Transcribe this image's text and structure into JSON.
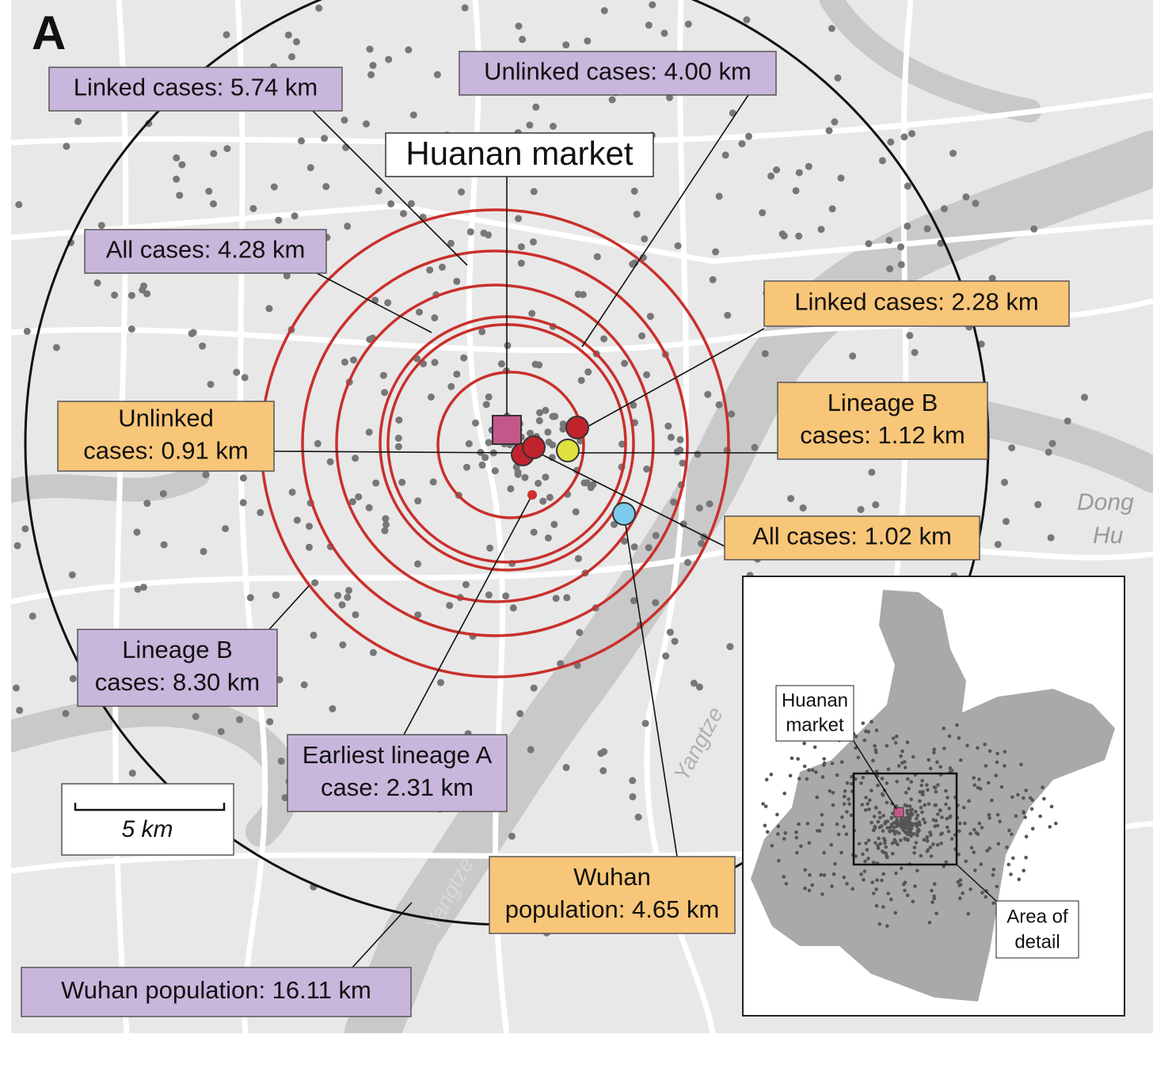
{
  "panel": "A",
  "market_label": "Huanan market",
  "labels": [
    {
      "lines": [
        "Linked cases: 5.74 km"
      ]
    },
    {
      "lines": [
        "Unlinked cases: 4.00 km"
      ]
    },
    {
      "lines": [
        "All cases: 4.28 km"
      ]
    },
    {
      "lines": [
        "Linked cases: 2.28 km"
      ]
    },
    {
      "lines": [
        "Lineage B",
        "cases: 1.12 km"
      ]
    },
    {
      "lines": [
        "Unlinked",
        "cases: 0.91 km"
      ]
    },
    {
      "lines": [
        "All cases: 1.02 km"
      ]
    },
    {
      "lines": [
        "Lineage B",
        "cases: 8.30 km"
      ]
    },
    {
      "lines": [
        "Earliest lineage A",
        "case: 2.31 km"
      ]
    },
    {
      "lines": [
        "Wuhan",
        "population: 4.65 km"
      ]
    },
    {
      "lines": [
        "Wuhan population: 16.11 km"
      ]
    }
  ],
  "scale": "5 km",
  "map_text": [
    "Yangtze",
    "Yangtze",
    "Dong",
    "Hu"
  ],
  "inset": {
    "market": [
      "Huanan",
      "market"
    ],
    "area": [
      "Area of",
      "detail"
    ]
  }
}
